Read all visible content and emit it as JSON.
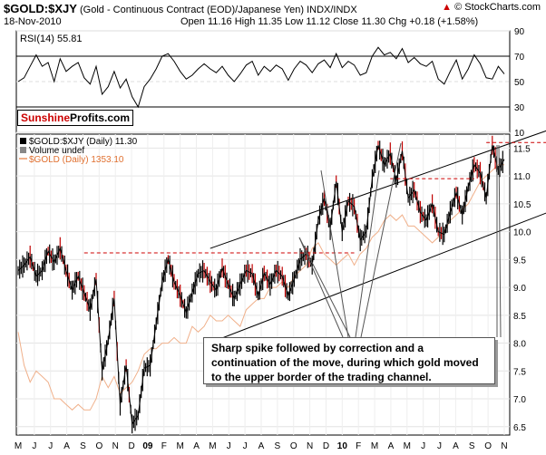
{
  "header": {
    "symbol": "$GOLD:$XJY",
    "description": "(Gold - Continuous Contract (EOD)/Japanese Yen)",
    "exchange": "INDX/INDX",
    "date": "18-Nov-2010",
    "ohlc": "Open 11.16  High 11.35  Low 11.12  Close 11.30  Chg +0.18 (+1.58%)",
    "credit": "© StockCharts.com",
    "credit_triangle": "▲"
  },
  "watermark": {
    "part1": "Sunshine",
    "part2": "Profits.com"
  },
  "annotation": "Sharp spike followed by correction and a continuation of the move, during which gold moved to the upper border of the trading channel.",
  "chart_data": [
    {
      "type": "line",
      "panel": "rsi",
      "title": "RSI(14) 55.81",
      "y_ticks": [
        10,
        30,
        50,
        70,
        90
      ],
      "reference_lines": [
        30,
        70
      ],
      "ylim": [
        10,
        90
      ],
      "series": [
        {
          "name": "RSI(14)",
          "values": [
            50,
            53,
            62,
            71,
            62,
            65,
            50,
            68,
            58,
            62,
            65,
            53,
            48,
            62,
            40,
            46,
            58,
            45,
            52,
            38,
            30,
            46,
            52,
            60,
            70,
            72,
            66,
            58,
            52,
            55,
            60,
            64,
            60,
            57,
            62,
            55,
            50,
            56,
            63,
            66,
            55,
            62,
            58,
            63,
            60,
            51,
            60,
            66,
            63,
            57,
            64,
            67,
            61,
            72,
            61,
            66,
            63,
            55,
            57,
            70,
            77,
            71,
            73,
            68,
            76,
            65,
            69,
            64,
            62,
            66,
            52,
            48,
            58,
            67,
            52,
            60,
            71,
            64,
            53,
            52,
            62,
            56
          ]
        }
      ]
    },
    {
      "type": "line",
      "panel": "price",
      "title": "$GOLD:$XJY (Daily) 11.30",
      "legend": [
        "$GOLD:$XJY (Daily) 11.30",
        "Volume undef",
        "$GOLD (Daily) 1353.10"
      ],
      "x_labels": [
        "M",
        "J",
        "J",
        "A",
        "S",
        "O",
        "N",
        "D",
        "09",
        "F",
        "M",
        "A",
        "M",
        "J",
        "J",
        "A",
        "S",
        "O",
        "N",
        "D",
        "10",
        "F",
        "M",
        "A",
        "M",
        "J",
        "J",
        "A",
        "S",
        "O",
        "N"
      ],
      "y_ticks": [
        6.5,
        7.0,
        7.5,
        8.0,
        8.5,
        9.0,
        9.5,
        10.0,
        10.5,
        11.0,
        11.5
      ],
      "ylim": [
        6.35,
        11.75
      ],
      "series": [
        {
          "name": "$GOLD:$XJY",
          "color": "#000000",
          "values": [
            9.3,
            9.4,
            9.55,
            9.2,
            9.3,
            9.65,
            9.45,
            9.7,
            9.3,
            8.95,
            9.2,
            8.9,
            8.6,
            9.15,
            7.5,
            8.05,
            8.8,
            6.9,
            7.6,
            6.55,
            6.7,
            7.55,
            7.6,
            8.35,
            9.1,
            9.5,
            9.1,
            8.85,
            8.55,
            8.9,
            9.25,
            9.3,
            9.1,
            8.95,
            9.35,
            9.05,
            8.8,
            9.05,
            9.3,
            9.25,
            8.85,
            9.25,
            9.05,
            9.3,
            9.2,
            8.85,
            9.15,
            9.5,
            9.6,
            9.4,
            10.2,
            10.6,
            10.05,
            10.9,
            10.0,
            10.55,
            10.45,
            9.85,
            10.0,
            10.95,
            11.55,
            11.2,
            11.4,
            10.9,
            11.45,
            10.6,
            10.75,
            10.35,
            10.2,
            10.5,
            10.0,
            9.95,
            10.35,
            10.7,
            10.3,
            10.8,
            11.2,
            11.05,
            10.6,
            11.55,
            11.1,
            11.3
          ]
        },
        {
          "name": "$GOLD",
          "color": "#f0b08a",
          "values": [
            8.2,
            7.6,
            7.3,
            7.5,
            7.4,
            7.3,
            7.0,
            7.0,
            6.9,
            6.8,
            6.9,
            6.8,
            6.8,
            7.0,
            7.4,
            7.2,
            7.4,
            7.1,
            7.2,
            7.3,
            7.5,
            7.8,
            7.9,
            7.9,
            8.0,
            8.0,
            8.1,
            8.0,
            8.0,
            8.3,
            8.2,
            8.3,
            8.5,
            8.4,
            8.4,
            8.5,
            8.4,
            8.3,
            8.6,
            8.7,
            8.8,
            8.8,
            9.0,
            9.0,
            9.1,
            9.0,
            9.2,
            9.3,
            9.4,
            9.7,
            9.8,
            9.6,
            9.5,
            9.4,
            9.5,
            9.6,
            9.4,
            9.6,
            9.7,
            9.9,
            10.0,
            10.2,
            10.3,
            10.2,
            10.3,
            10.1,
            10.1,
            10.0,
            9.9,
            9.8,
            9.9,
            10.0,
            10.2,
            10.3,
            10.4,
            10.5,
            10.7,
            10.9,
            11.0,
            11.1,
            11.2,
            11.2
          ]
        }
      ],
      "channel": {
        "upper": {
          "from": {
            "x_index": 32,
            "y": 9.7
          },
          "to": {
            "x_index": 101,
            "y": 12.3
          }
        },
        "lower": {
          "from": {
            "x_index": 33,
            "y": 8.05
          },
          "to": {
            "x_index": 104,
            "y": 11.0
          }
        }
      },
      "resistance_levels": [
        {
          "y": 9.62,
          "from_index": 11,
          "to_index": 56
        },
        {
          "y": 10.95,
          "from_index": 62,
          "to_index": 76
        },
        {
          "y": 11.6,
          "from_index": 78,
          "to_index": 97
        }
      ]
    }
  ]
}
